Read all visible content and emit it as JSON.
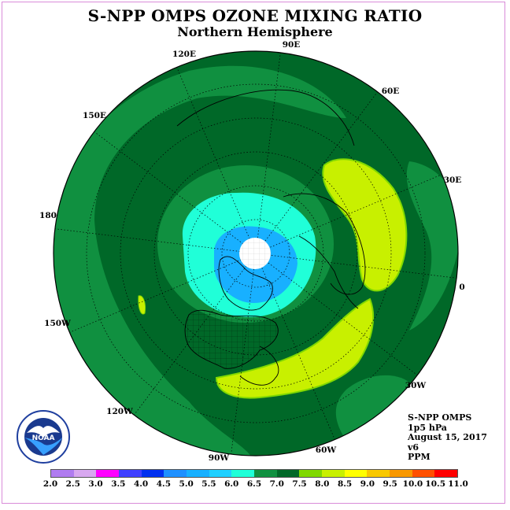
{
  "title": "S-NPP OMPS OZONE MIXING RATIO",
  "subtitle": "Northern Hemisphere",
  "longitude_labels": [
    "90E",
    "60E",
    "30E",
    "0",
    "30W",
    "60W",
    "90W",
    "120W",
    "150W",
    "180",
    "150E",
    "120E"
  ],
  "info": {
    "instrument": "S-NPP OMPS",
    "level": "1p5 hPa",
    "date": "August 15, 2017",
    "version": "v6",
    "units": "PPM"
  },
  "logo_text": "NOAA",
  "color_scale": {
    "labels": [
      "2.0",
      "2.5",
      "3.0",
      "3.5",
      "4.0",
      "4.5",
      "5.0",
      "5.5",
      "6.0",
      "6.5",
      "7.0",
      "7.5",
      "8.0",
      "8.5",
      "9.0",
      "9.5",
      "10.0",
      "10.5",
      "11.0"
    ],
    "colors": [
      "#b07cf0",
      "#d8a8f0",
      "#ff00ff",
      "#4040ff",
      "#0030f0",
      "#1e90ff",
      "#18b0ff",
      "#20d0ff",
      "#20ffd8",
      "#109040",
      "#006828",
      "#80d800",
      "#c8f000",
      "#ffff00",
      "#f8c800",
      "#f89800",
      "#ff5000",
      "#ff0000",
      "#8b4a2b"
    ]
  }
}
